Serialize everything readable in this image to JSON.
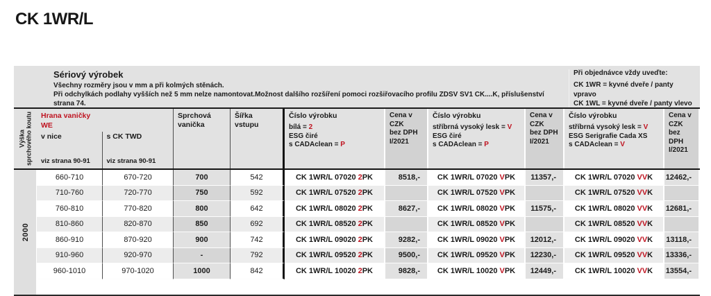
{
  "accent_red": "#bf1320",
  "page": {
    "title": "CK 1WR/L"
  },
  "info_band": {
    "product_title": "Sériový výrobek",
    "note_line1": "Všechny rozměry jsou v mm a při kolmých stěnách.",
    "note_line2": "Při odchylkách podlahy vyšších než 5 mm nelze namontovat.Možnost dalšího rozšíření pomoci rozšiřovacího profilu ZDSV SV1 CK....K, příslušenství",
    "note_line3": "strana 74.",
    "order_note": {
      "title": "Při objednávce vždy uveďte:",
      "variant_right": "CK 1WR = kyvné dveře / panty vpravo",
      "variant_left": "CK 1WL = kyvné dveře / panty vlevo"
    }
  },
  "table": {
    "headers": {
      "height_label": "Výška\nsprchového koutu",
      "edge_label": "Hrana vaničky\nWE",
      "niche": {
        "title": "v nice",
        "ref": "viz strana 90-91"
      },
      "twd": {
        "title": "s CK TWD",
        "ref": "viz strana 90-91"
      },
      "tray": "Sprchová vanička",
      "entry_width": "Šířka vstupu",
      "code_white": {
        "title": "Číslo výrobku",
        "l1_pre": "bílá = ",
        "l1_red": "2",
        "l2": "ESG čiré",
        "l3_pre": "s CADAclean = ",
        "l3_red": "P"
      },
      "price": "Cena v CZK\nbez DPH\nI/2021",
      "code_silver": {
        "title": "Číslo výrobku",
        "l1_pre": "stříbrná vysoký lesk = ",
        "l1_red": "V",
        "l2": "ESG čiré",
        "l3_pre": "s CADAclean = ",
        "l3_red": "P"
      },
      "code_serigraphy": {
        "title": "Číslo výrobku",
        "l1_pre": "stříbrná vysoký lesk = ",
        "l1_red": "V",
        "l2": "ESG Serigrafie Cada XS",
        "l3_pre": "s CADAclean = ",
        "l3_red": "V"
      }
    },
    "height_value": "2000",
    "rows": [
      {
        "nice": "660-710",
        "twd": "670-720",
        "tray": "700",
        "width": "542",
        "c1b": "CK 1WR/L 07020",
        "c1r": "2",
        "c1t": "PK",
        "p1": "8518,-",
        "c2b": "CK 1WR/L 07020",
        "c2r": "V",
        "c2t": "PK",
        "p2": "11357,-",
        "c3b": "CK 1WR/L 07020",
        "c3r": "VV",
        "c3t": "K",
        "p3": "12462,-"
      },
      {
        "nice": "710-760",
        "twd": "720-770",
        "tray": "750",
        "width": "592",
        "c1b": "CK 1WR/L 07520",
        "c1r": "2",
        "c1t": "PK",
        "p1": "",
        "c2b": "CK 1WR/L 07520",
        "c2r": "V",
        "c2t": "PK",
        "p2": "",
        "c3b": "CK 1WR/L 07520",
        "c3r": "VV",
        "c3t": "K",
        "p3": ""
      },
      {
        "nice": "760-810",
        "twd": "770-820",
        "tray": "800",
        "width": "642",
        "c1b": "CK 1WR/L 08020",
        "c1r": "2",
        "c1t": "PK",
        "p1": "8627,-",
        "c2b": "CK 1WR/L 08020",
        "c2r": "V",
        "c2t": "PK",
        "p2": "11575,-",
        "c3b": "CK 1WR/L 08020",
        "c3r": "VV",
        "c3t": "K",
        "p3": "12681,-"
      },
      {
        "nice": "810-860",
        "twd": "820-870",
        "tray": "850",
        "width": "692",
        "c1b": "CK 1WR/L 08520",
        "c1r": "2",
        "c1t": "PK",
        "p1": "",
        "c2b": "CK 1WR/L 08520",
        "c2r": "V",
        "c2t": "PK",
        "p2": "",
        "c3b": "CK 1WR/L 08520",
        "c3r": "VV",
        "c3t": "K",
        "p3": ""
      },
      {
        "nice": "860-910",
        "twd": "870-920",
        "tray": "900",
        "width": "742",
        "c1b": "CK 1WR/L 09020",
        "c1r": "2",
        "c1t": "PK",
        "p1": "9282,-",
        "c2b": "CK 1WR/L 09020",
        "c2r": "V",
        "c2t": "PK",
        "p2": "12012,-",
        "c3b": "CK 1WR/L 09020",
        "c3r": "VV",
        "c3t": "K",
        "p3": "13118,-"
      },
      {
        "nice": "910-960",
        "twd": "920-970",
        "tray": "-",
        "width": "792",
        "c1b": "CK 1WR/L 09520",
        "c1r": "2",
        "c1t": "PK",
        "p1": "9500,-",
        "c2b": "CK 1WR/L 09520",
        "c2r": "V",
        "c2t": "PK",
        "p2": "12230,-",
        "c3b": "CK 1WR/L 09520",
        "c3r": "VV",
        "c3t": "K",
        "p3": "13336,-"
      },
      {
        "nice": "960-1010",
        "twd": "970-1020",
        "tray": "1000",
        "width": "842",
        "c1b": "CK 1WR/L 10020",
        "c1r": "2",
        "c1t": "PK",
        "p1": "9828,-",
        "c2b": "CK 1WR/L 10020",
        "c2r": "V",
        "c2t": "PK",
        "p2": "12449,-",
        "c3b": "CK 1WR/L 10020",
        "c3r": "VV",
        "c3t": "K",
        "p3": "13554,-"
      }
    ]
  }
}
